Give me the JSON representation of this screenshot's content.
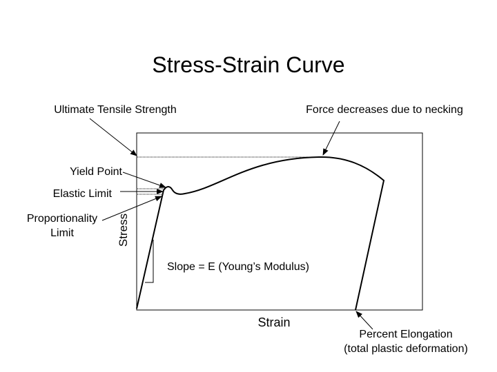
{
  "title": "Stress-Strain Curve",
  "labels": {
    "ultimate_tensile_strength": "Ultimate Tensile Strength",
    "necking": "Force decreases due to necking",
    "yield_point": "Yield Point",
    "elastic_limit": "Elastic Limit",
    "proportionality_limit": [
      "Proportionality",
      "Limit"
    ],
    "stress_axis": "Stress",
    "slope": "Slope = E (Young’s Modulus)",
    "strain_axis": "Strain",
    "percent_elongation": [
      "Percent Elongation",
      "(total plastic deformation)"
    ]
  }
}
